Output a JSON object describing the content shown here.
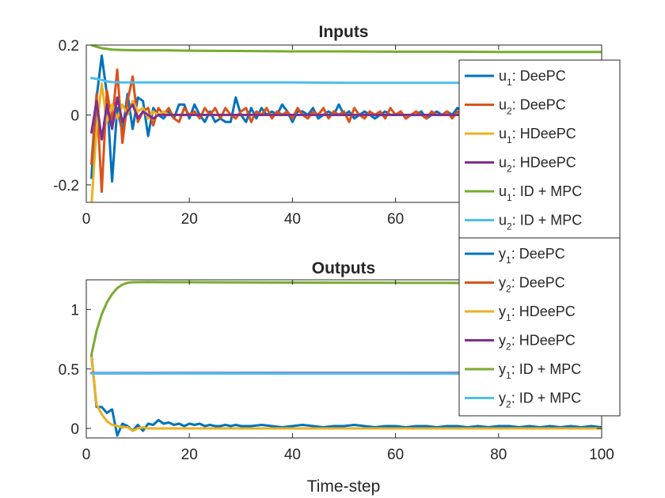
{
  "colors": {
    "DeePC_1": "#0072BD",
    "DeePC_2": "#D95319",
    "HDeePC_1": "#EDB120",
    "HDeePC_2": "#7E2F8E",
    "IDMPC_1": "#77AC30",
    "IDMPC_2": "#4DBEEE",
    "axes": "#262626",
    "legend_edge": "#262626"
  },
  "chart_data": [
    {
      "type": "line",
      "title": "Inputs",
      "xlabel": "",
      "ylabel": "",
      "xlim": [
        0,
        100
      ],
      "ylim": [
        -0.25,
        0.2
      ],
      "xticks": [
        0,
        20,
        40,
        60,
        80,
        100
      ],
      "xtick_labels": [
        "0",
        "20",
        "40",
        "60",
        "80",
        "100"
      ],
      "yticks": [
        -0.2,
        0,
        0.2
      ],
      "ytick_labels": [
        "-0.2",
        "0",
        "0.2"
      ],
      "legend_position": "right",
      "series": [
        {
          "legend": {
            "var": "u",
            "sub": "1",
            "method": "DeePC"
          },
          "color_key": "DeePC_1",
          "x": [
            1,
            2,
            3,
            4,
            5,
            6,
            7,
            8,
            9,
            10,
            11,
            12,
            13,
            14,
            15,
            16,
            17,
            18,
            19,
            20,
            21,
            22,
            23,
            24,
            25,
            26,
            27,
            28,
            29,
            30,
            31,
            32,
            33,
            34,
            35,
            36,
            37,
            38,
            39,
            40,
            41,
            42,
            43,
            44,
            45,
            46,
            47,
            48,
            49,
            50,
            51,
            52,
            53,
            54,
            55,
            56,
            57,
            58,
            59,
            60,
            61,
            62,
            63,
            64,
            65,
            66,
            67,
            68,
            69,
            70,
            71,
            72,
            73,
            74,
            75,
            76,
            77,
            78,
            79,
            80,
            81,
            82,
            83,
            84,
            85,
            86,
            87,
            88,
            89,
            90,
            91,
            92,
            93,
            94,
            95,
            96,
            97,
            98,
            99,
            100
          ],
          "y": [
            -0.18,
            0.05,
            0.17,
            0.06,
            -0.19,
            0.02,
            -0.05,
            0.06,
            -0.04,
            0.05,
            0.04,
            -0.06,
            0.02,
            0.0,
            -0.01,
            0.01,
            -0.01,
            0.03,
            0.03,
            -0.01,
            0.03,
            0.0,
            -0.02,
            0.01,
            -0.02,
            -0.01,
            -0.02,
            -0.02,
            0.05,
            0.0,
            -0.02,
            0.02,
            -0.01,
            0.02,
            0.0,
            0.01,
            0.0,
            0.03,
            0.01,
            -0.02,
            0.01,
            0.01,
            0.0,
            0.02,
            -0.01,
            0.0,
            0.01,
            0.0,
            0.03,
            0.0,
            0.01,
            -0.01,
            0.0,
            0.01,
            0.0,
            -0.01,
            0.0,
            0.01,
            0.0,
            0.0,
            0.01,
            -0.01,
            0.0,
            0.0,
            0.01,
            -0.01,
            0.0,
            0.01,
            0.0,
            0.01,
            0.0,
            0.02,
            0.01,
            -0.01,
            0.0,
            0.01,
            0.0,
            0.0,
            0.01,
            -0.01,
            0.0,
            0.0,
            0.01,
            0.0,
            0.01,
            -0.01,
            0.0,
            0.01,
            0.0,
            0.0,
            -0.01,
            0.01,
            0.0,
            0.0,
            0.01,
            0.0,
            -0.01,
            0.0,
            0.01,
            0.0
          ]
        },
        {
          "legend": {
            "var": "u",
            "sub": "2",
            "method": "DeePC"
          },
          "color_key": "DeePC_2",
          "x": [
            1,
            2,
            3,
            4,
            5,
            6,
            7,
            8,
            9,
            10,
            11,
            12,
            13,
            14,
            15,
            16,
            17,
            18,
            19,
            20,
            21,
            22,
            23,
            24,
            25,
            26,
            27,
            28,
            29,
            30,
            31,
            32,
            33,
            34,
            35,
            36,
            37,
            38,
            39,
            40,
            41,
            42,
            43,
            44,
            45,
            46,
            47,
            48,
            49,
            50,
            51,
            52,
            53,
            54,
            55,
            56,
            57,
            58,
            59,
            60,
            61,
            62,
            63,
            64,
            65,
            66,
            67,
            68,
            69,
            70,
            71,
            72,
            73,
            74,
            75,
            76,
            77,
            78,
            79,
            80,
            81,
            82,
            83,
            84,
            85,
            86,
            87,
            88,
            89,
            90,
            91,
            92,
            93,
            94,
            95,
            96,
            97,
            98,
            99,
            100
          ],
          "y": [
            -0.14,
            0.06,
            -0.22,
            0.07,
            -0.02,
            0.13,
            -0.08,
            0.04,
            0.11,
            -0.02,
            0.01,
            0.02,
            -0.03,
            0.02,
            0.0,
            0.02,
            -0.01,
            -0.02,
            0.02,
            0.0,
            0.01,
            -0.01,
            0.02,
            0.0,
            0.02,
            -0.01,
            0.02,
            0.0,
            -0.01,
            0.01,
            0.02,
            -0.02,
            0.01,
            0.0,
            0.02,
            -0.01,
            0.01,
            0.0,
            0.01,
            -0.01,
            0.02,
            0.0,
            -0.01,
            0.01,
            0.0,
            0.02,
            -0.01,
            0.01,
            0.0,
            0.01,
            -0.02,
            0.02,
            0.0,
            -0.01,
            0.01,
            0.0,
            0.01,
            -0.01,
            0.02,
            0.0,
            0.01,
            -0.01,
            0.0,
            0.01,
            0.0,
            -0.01,
            0.01,
            0.0,
            0.0,
            0.01,
            -0.01,
            0.01,
            0.0,
            0.0,
            0.01,
            -0.01,
            0.0,
            0.01,
            0.0,
            0.0,
            0.01,
            -0.01,
            0.0,
            0.01,
            0.0,
            0.0,
            -0.01,
            0.01,
            0.0,
            0.0,
            0.01,
            0.0,
            -0.01,
            0.0,
            0.01,
            0.0,
            0.0,
            0.01,
            0.0,
            0.0
          ]
        },
        {
          "legend": {
            "var": "u",
            "sub": "1",
            "method": "HDeePC"
          },
          "color_key": "HDeePC_1",
          "x": [
            1,
            2,
            3,
            4,
            5,
            6,
            7,
            8,
            9,
            10,
            11,
            12,
            13,
            14,
            15,
            16,
            17,
            18,
            19,
            20,
            22,
            25,
            30,
            40,
            50,
            60,
            70,
            80,
            90,
            100
          ],
          "y": [
            -0.26,
            -0.04,
            0.09,
            -0.02,
            0.03,
            -0.01,
            0.03,
            0.0,
            0.04,
            0.01,
            0.02,
            -0.01,
            0.01,
            0.0,
            0.01,
            0.0,
            0.0,
            0.0,
            0.0,
            0.0,
            0.0,
            0.0,
            0.0,
            0.0,
            0.0,
            0.0,
            0.0,
            0.0,
            0.0,
            0.0
          ]
        },
        {
          "legend": {
            "var": "u",
            "sub": "2",
            "method": "HDeePC"
          },
          "color_key": "HDeePC_2",
          "x": [
            1,
            2,
            3,
            4,
            5,
            6,
            7,
            8,
            9,
            10,
            11,
            12,
            13,
            14,
            15,
            16,
            17,
            18,
            19,
            20,
            22,
            25,
            30,
            40,
            50,
            60,
            70,
            80,
            90,
            100
          ],
          "y": [
            -0.05,
            0.04,
            -0.07,
            0.03,
            -0.04,
            0.05,
            -0.02,
            0.01,
            0.03,
            -0.01,
            0.01,
            0.0,
            -0.01,
            0.0,
            0.0,
            0.0,
            0.0,
            0.0,
            0.0,
            0.0,
            0.0,
            0.0,
            0.0,
            0.0,
            0.0,
            0.0,
            0.0,
            0.0,
            0.0,
            0.0
          ]
        },
        {
          "legend": {
            "var": "u",
            "sub": "1",
            "method": "ID + MPC"
          },
          "color_key": "IDMPC_1",
          "x": [
            1,
            2,
            3,
            4,
            5,
            7,
            10,
            15,
            20,
            30,
            40,
            50,
            60,
            70,
            80,
            90,
            100
          ],
          "y": [
            0.2,
            0.195,
            0.191,
            0.189,
            0.187,
            0.186,
            0.185,
            0.185,
            0.184,
            0.183,
            0.182,
            0.182,
            0.181,
            0.181,
            0.18,
            0.18,
            0.18
          ]
        },
        {
          "legend": {
            "var": "u",
            "sub": "2",
            "method": "ID + MPC"
          },
          "color_key": "IDMPC_2",
          "x": [
            1,
            2,
            3,
            4,
            5,
            7,
            10,
            15,
            20,
            30,
            40,
            50,
            60,
            70,
            80,
            90,
            100
          ],
          "y": [
            0.106,
            0.103,
            0.1,
            0.096,
            0.094,
            0.093,
            0.093,
            0.093,
            0.093,
            0.093,
            0.093,
            0.092,
            0.092,
            0.092,
            0.092,
            0.092,
            0.092
          ]
        }
      ]
    },
    {
      "type": "line",
      "title": "Outputs",
      "xlabel": "Time-step",
      "ylabel": "",
      "xlim": [
        0,
        100
      ],
      "ylim": [
        -0.08,
        1.25
      ],
      "xticks": [
        0,
        20,
        40,
        60,
        80,
        100
      ],
      "xtick_labels": [
        "0",
        "20",
        "40",
        "60",
        "80",
        "100"
      ],
      "yticks": [
        0,
        0.5,
        1
      ],
      "ytick_labels": [
        "0",
        "0.5",
        "1"
      ],
      "legend_position": "right",
      "series": [
        {
          "legend": {
            "var": "y",
            "sub": "1",
            "method": "DeePC"
          },
          "color_key": "DeePC_1",
          "x": [
            1,
            2,
            3,
            4,
            5,
            6,
            7,
            8,
            9,
            10,
            11,
            12,
            13,
            14,
            15,
            16,
            17,
            18,
            19,
            20,
            21,
            22,
            23,
            24,
            25,
            26,
            27,
            28,
            29,
            30,
            32,
            34,
            36,
            38,
            40,
            42,
            44,
            46,
            48,
            50,
            52,
            54,
            56,
            58,
            60,
            62,
            64,
            66,
            68,
            70,
            72,
            74,
            76,
            78,
            80,
            82,
            84,
            86,
            88,
            90,
            92,
            94,
            96,
            98,
            100
          ],
          "y": [
            0.62,
            0.18,
            0.18,
            0.13,
            0.16,
            -0.06,
            0.04,
            0.02,
            -0.02,
            0.03,
            -0.02,
            0.04,
            0.03,
            0.07,
            0.04,
            0.05,
            0.03,
            0.04,
            0.02,
            0.04,
            0.03,
            0.04,
            0.02,
            0.03,
            0.02,
            0.02,
            0.03,
            0.02,
            0.03,
            0.02,
            0.02,
            0.03,
            0.02,
            0.01,
            0.02,
            0.03,
            0.02,
            0.01,
            0.02,
            0.02,
            0.03,
            0.02,
            0.01,
            0.02,
            0.02,
            0.01,
            0.02,
            0.02,
            0.01,
            0.02,
            0.02,
            0.01,
            0.02,
            0.01,
            0.02,
            0.02,
            0.01,
            0.02,
            0.01,
            0.02,
            0.01,
            0.02,
            0.01,
            0.02,
            0.01
          ]
        },
        {
          "legend": {
            "var": "y",
            "sub": "2",
            "method": "DeePC"
          },
          "color_key": "DeePC_2",
          "x": [
            1,
            100
          ],
          "y": [
            0.463,
            0.463
          ]
        },
        {
          "legend": {
            "var": "y",
            "sub": "1",
            "method": "HDeePC"
          },
          "color_key": "HDeePC_1",
          "x": [
            1,
            2,
            3,
            4,
            5,
            6,
            7,
            8,
            9,
            10,
            11,
            12,
            14,
            16,
            18,
            20,
            25,
            30,
            40,
            50,
            60,
            70,
            80,
            90,
            100
          ],
          "y": [
            0.6,
            0.2,
            0.12,
            0.06,
            0.03,
            0.02,
            0.01,
            0.01,
            -0.02,
            0.0,
            0.01,
            0.0,
            0.0,
            0.0,
            0.0,
            0.0,
            0.0,
            0.0,
            0.0,
            0.0,
            0.0,
            0.0,
            0.0,
            0.0,
            0.0
          ]
        },
        {
          "legend": {
            "var": "y",
            "sub": "2",
            "method": "HDeePC"
          },
          "color_key": "HDeePC_2",
          "x": [
            1,
            20,
            40,
            60,
            80,
            100
          ],
          "y": [
            0.465,
            0.466,
            0.466,
            0.466,
            0.466,
            0.466
          ]
        },
        {
          "legend": {
            "var": "y",
            "sub": "1",
            "method": "ID + MPC"
          },
          "color_key": "IDMPC_1",
          "x": [
            1,
            2,
            3,
            4,
            5,
            6,
            7,
            8,
            9,
            10,
            12,
            15,
            20,
            30,
            40,
            50,
            60,
            70,
            80,
            90,
            100
          ],
          "y": [
            0.62,
            0.82,
            0.96,
            1.06,
            1.13,
            1.18,
            1.21,
            1.225,
            1.23,
            1.23,
            1.232,
            1.23,
            1.23,
            1.228,
            1.227,
            1.226,
            1.225,
            1.224,
            1.222,
            1.221,
            1.22
          ]
        },
        {
          "legend": {
            "var": "y",
            "sub": "2",
            "method": "ID + MPC"
          },
          "color_key": "IDMPC_2",
          "x": [
            1,
            20,
            40,
            60,
            80,
            100
          ],
          "y": [
            0.462,
            0.462,
            0.461,
            0.461,
            0.46,
            0.46
          ]
        }
      ]
    }
  ]
}
